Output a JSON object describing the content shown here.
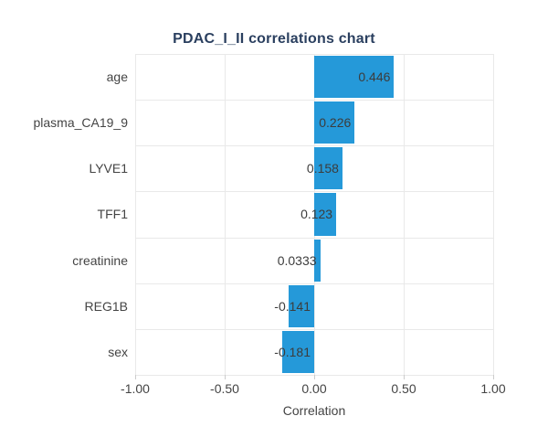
{
  "chart_data": {
    "type": "bar",
    "orientation": "horizontal",
    "title": "PDAC_I_II correlations chart",
    "xlabel": "Correlation",
    "categories": [
      "age",
      "plasma_CA19_9",
      "LYVE1",
      "TFF1",
      "creatinine",
      "REG1B",
      "sex"
    ],
    "values": [
      0.446,
      0.226,
      0.158,
      0.123,
      0.0333,
      -0.141,
      -0.181
    ],
    "value_labels": [
      "0.446",
      "0.226",
      "0.158",
      "0.123",
      "0.0333",
      "-0.141",
      "-0.181"
    ],
    "xlim": [
      -1.0,
      1.0
    ],
    "xticks": [
      -1.0,
      -0.5,
      0.0,
      0.5,
      1.0
    ],
    "xtick_labels": [
      "-1.00",
      "-0.50",
      "0.00",
      "0.50",
      "1.00"
    ],
    "grid": true,
    "legend": false,
    "colors": {
      "bar": "#2599d9",
      "grid": "#e9e9e9",
      "tick_mark": "#cccccc",
      "axis_text": "#444444",
      "title_text": "#2a3f5f",
      "bar_label_text": "#3c3c3c",
      "background": "#ffffff"
    }
  }
}
